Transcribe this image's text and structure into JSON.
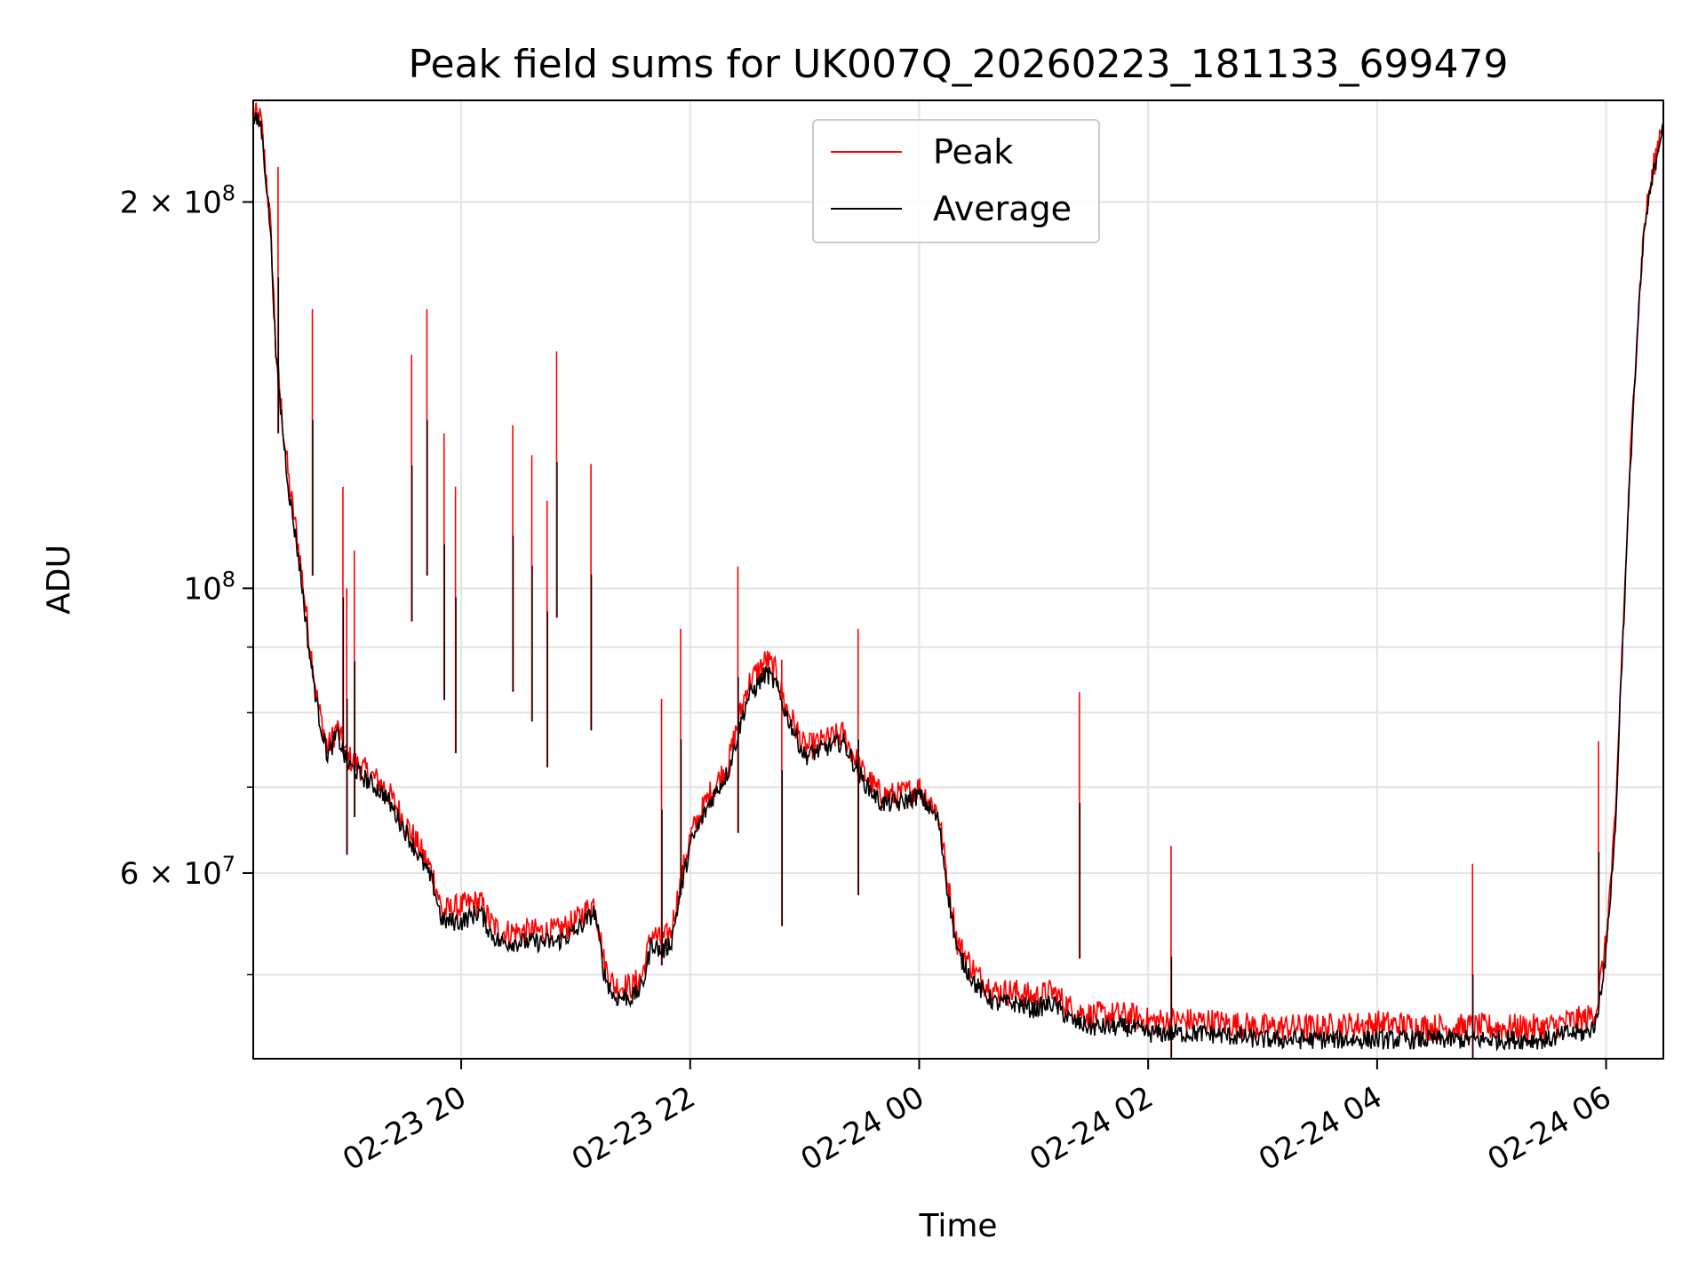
{
  "chart_data": {
    "type": "line",
    "title": "Peak field sums for UK007Q_20260223_181133_699479",
    "xlabel": "Time",
    "ylabel": "ADU",
    "yscale": "log",
    "ylim": [
      43000000,
      240000000
    ],
    "xlim": [
      "2026-02-23 18:11",
      "2026-02-24 06:30"
    ],
    "grid": true,
    "legend": {
      "placement": "top-center",
      "entries": [
        "Peak",
        "Average"
      ]
    },
    "x_ticks": [
      {
        "value": "2026-02-23 20:00",
        "label": "02-23 20"
      },
      {
        "value": "2026-02-23 22:00",
        "label": "02-23 22"
      },
      {
        "value": "2026-02-24 00:00",
        "label": "02-24 00"
      },
      {
        "value": "2026-02-24 02:00",
        "label": "02-24 02"
      },
      {
        "value": "2026-02-24 04:00",
        "label": "02-24 04"
      },
      {
        "value": "2026-02-24 06:00",
        "label": "02-24 06"
      }
    ],
    "y_ticks_major": [
      {
        "value": 100000000,
        "label_base": "10",
        "label_exp": "8",
        "label_coef": ""
      },
      {
        "value": 200000000,
        "label_base": "10",
        "label_exp": "8",
        "label_coef": "2 × "
      },
      {
        "value": 60000000,
        "label_base": "10",
        "label_exp": "7",
        "label_coef": "6 × "
      }
    ],
    "y_ticks_minor": [
      50000000,
      70000000,
      80000000,
      90000000
    ],
    "colors": {
      "Peak": "#ff0000",
      "Average": "#000000"
    },
    "series": [
      {
        "name": "Average",
        "x": [
          "2026-02-23 18:11",
          "2026-02-23 18:15",
          "2026-02-23 18:20",
          "2026-02-23 18:23",
          "2026-02-23 18:25",
          "2026-02-23 18:27",
          "2026-02-23 18:30",
          "2026-02-23 18:35",
          "2026-02-23 18:40",
          "2026-02-23 18:45",
          "2026-02-23 18:50",
          "2026-02-23 18:55",
          "2026-02-23 19:00",
          "2026-02-23 19:10",
          "2026-02-23 19:20",
          "2026-02-23 19:30",
          "2026-02-23 19:40",
          "2026-02-23 19:45",
          "2026-02-23 19:50",
          "2026-02-23 20:00",
          "2026-02-23 20:10",
          "2026-02-23 20:15",
          "2026-02-23 20:20",
          "2026-02-23 20:30",
          "2026-02-23 20:40",
          "2026-02-23 20:50",
          "2026-02-23 21:00",
          "2026-02-23 21:10",
          "2026-02-23 21:15",
          "2026-02-23 21:20",
          "2026-02-23 21:30",
          "2026-02-23 21:35",
          "2026-02-23 21:40",
          "2026-02-23 21:45",
          "2026-02-23 21:50",
          "2026-02-23 22:00",
          "2026-02-23 22:10",
          "2026-02-23 22:15",
          "2026-02-23 22:20",
          "2026-02-23 22:30",
          "2026-02-23 22:40",
          "2026-02-23 22:45",
          "2026-02-23 22:50",
          "2026-02-23 23:00",
          "2026-02-23 23:10",
          "2026-02-23 23:20",
          "2026-02-23 23:30",
          "2026-02-23 23:40",
          "2026-02-23 23:50",
          "2026-02-24 00:00",
          "2026-02-24 00:10",
          "2026-02-24 00:15",
          "2026-02-24 00:20",
          "2026-02-24 00:30",
          "2026-02-24 00:40",
          "2026-02-24 00:50",
          "2026-02-24 01:00",
          "2026-02-24 01:10",
          "2026-02-24 01:20",
          "2026-02-24 01:30",
          "2026-02-24 01:40",
          "2026-02-24 01:50",
          "2026-02-24 02:00",
          "2026-02-24 02:30",
          "2026-02-24 03:00",
          "2026-02-24 03:30",
          "2026-02-24 04:00",
          "2026-02-24 04:30",
          "2026-02-24 05:00",
          "2026-02-24 05:30",
          "2026-02-24 05:40",
          "2026-02-24 05:50",
          "2026-02-24 05:55",
          "2026-02-24 06:00",
          "2026-02-24 06:05",
          "2026-02-24 06:10",
          "2026-02-24 06:20",
          "2026-02-24 06:30"
        ],
        "values": [
          232000000,
          230000000,
          190000000,
          150000000,
          140000000,
          130000000,
          118000000,
          105000000,
          90000000,
          80000000,
          74000000,
          77000000,
          73000000,
          71000000,
          69000000,
          65000000,
          61000000,
          59000000,
          55000000,
          55000000,
          56000000,
          54000000,
          53000000,
          53000000,
          53000000,
          53000000,
          54000000,
          56000000,
          50000000,
          48000000,
          48000000,
          49000000,
          53000000,
          52000000,
          53000000,
          63000000,
          68000000,
          70000000,
          72000000,
          82000000,
          86000000,
          84000000,
          80000000,
          74000000,
          75000000,
          76000000,
          71000000,
          68000000,
          68000000,
          69000000,
          66000000,
          58000000,
          52000000,
          49000000,
          47500000,
          47500000,
          47000000,
          47500000,
          46000000,
          45500000,
          45500000,
          45500000,
          45000000,
          45000000,
          44500000,
          44500000,
          44500000,
          44500000,
          44500000,
          44500000,
          45000000,
          45000000,
          46000000,
          52000000,
          65000000,
          100000000,
          190000000,
          232000000
        ]
      },
      {
        "name": "Peak",
        "x": [
          "2026-02-23 18:11",
          "2026-02-23 18:15",
          "2026-02-23 18:20",
          "2026-02-23 18:23",
          "2026-02-23 18:25",
          "2026-02-23 18:27",
          "2026-02-23 18:30",
          "2026-02-23 18:35",
          "2026-02-23 18:40",
          "2026-02-23 18:45",
          "2026-02-23 18:50",
          "2026-02-23 18:55",
          "2026-02-23 19:00",
          "2026-02-23 19:10",
          "2026-02-23 19:20",
          "2026-02-23 19:30",
          "2026-02-23 19:40",
          "2026-02-23 19:45",
          "2026-02-23 19:50",
          "2026-02-23 20:00",
          "2026-02-23 20:10",
          "2026-02-23 20:15",
          "2026-02-23 20:20",
          "2026-02-23 20:30",
          "2026-02-23 20:40",
          "2026-02-23 20:50",
          "2026-02-23 21:00",
          "2026-02-23 21:10",
          "2026-02-23 21:15",
          "2026-02-23 21:20",
          "2026-02-23 21:30",
          "2026-02-23 21:35",
          "2026-02-23 21:40",
          "2026-02-23 21:45",
          "2026-02-23 21:50",
          "2026-02-23 22:00",
          "2026-02-23 22:10",
          "2026-02-23 22:15",
          "2026-02-23 22:20",
          "2026-02-23 22:30",
          "2026-02-23 22:40",
          "2026-02-23 22:45",
          "2026-02-23 22:50",
          "2026-02-23 23:00",
          "2026-02-23 23:10",
          "2026-02-23 23:20",
          "2026-02-23 23:30",
          "2026-02-23 23:40",
          "2026-02-23 23:50",
          "2026-02-24 00:00",
          "2026-02-24 00:10",
          "2026-02-24 00:15",
          "2026-02-24 00:20",
          "2026-02-24 00:30",
          "2026-02-24 00:40",
          "2026-02-24 00:50",
          "2026-02-24 01:00",
          "2026-02-24 01:10",
          "2026-02-24 01:20",
          "2026-02-24 01:30",
          "2026-02-24 01:40",
          "2026-02-24 01:50",
          "2026-02-24 02:00",
          "2026-02-24 02:30",
          "2026-02-24 03:00",
          "2026-02-24 03:30",
          "2026-02-24 04:00",
          "2026-02-24 04:30",
          "2026-02-24 05:00",
          "2026-02-24 05:30",
          "2026-02-24 05:40",
          "2026-02-24 05:50",
          "2026-02-24 05:55",
          "2026-02-24 06:00",
          "2026-02-24 06:05",
          "2026-02-24 06:10",
          "2026-02-24 06:20",
          "2026-02-24 06:30"
        ],
        "values": [
          234000000,
          232000000,
          192000000,
          152000000,
          142000000,
          132000000,
          120000000,
          107000000,
          92000000,
          81000000,
          75000000,
          78000000,
          74000000,
          72000000,
          70000000,
          66000000,
          62000000,
          60000000,
          56000000,
          56500000,
          57000000,
          55000000,
          54000000,
          54000000,
          54000000,
          54000000,
          55000000,
          57000000,
          51000000,
          49000000,
          49000000,
          50000000,
          54000000,
          53000000,
          54000000,
          64000000,
          69000000,
          71000000,
          73000000,
          84000000,
          88000000,
          86000000,
          81000000,
          75000000,
          76000000,
          77000000,
          72000000,
          69000000,
          69000000,
          70000000,
          67000000,
          59000000,
          53000000,
          50000000,
          48500000,
          48500000,
          48000000,
          48500000,
          47000000,
          46500000,
          46500000,
          46500000,
          46000000,
          46000000,
          45500000,
          45500000,
          45800000,
          45500000,
          45500000,
          45500000,
          46000000,
          46200000,
          47000000,
          53000000,
          66000000,
          101000000,
          192000000,
          234000000
        ],
        "spikes": [
          {
            "x": "2026-02-23 18:24",
            "value": 213000000
          },
          {
            "x": "2026-02-23 18:42",
            "value": 165000000
          },
          {
            "x": "2026-02-23 18:58",
            "value": 120000000
          },
          {
            "x": "2026-02-23 19:00",
            "value": 100000000
          },
          {
            "x": "2026-02-23 19:04",
            "value": 107000000
          },
          {
            "x": "2026-02-23 19:34",
            "value": 152000000
          },
          {
            "x": "2026-02-23 19:42",
            "value": 165000000
          },
          {
            "x": "2026-02-23 19:51",
            "value": 132000000
          },
          {
            "x": "2026-02-23 19:57",
            "value": 120000000
          },
          {
            "x": "2026-02-23 20:27",
            "value": 134000000
          },
          {
            "x": "2026-02-23 20:37",
            "value": 127000000
          },
          {
            "x": "2026-02-23 20:45",
            "value": 117000000
          },
          {
            "x": "2026-02-23 20:50",
            "value": 153000000
          },
          {
            "x": "2026-02-23 21:08",
            "value": 125000000
          },
          {
            "x": "2026-02-23 21:45",
            "value": 82000000
          },
          {
            "x": "2026-02-23 21:55",
            "value": 93000000
          },
          {
            "x": "2026-02-23 22:25",
            "value": 104000000
          },
          {
            "x": "2026-02-23 22:48",
            "value": 88000000
          },
          {
            "x": "2026-02-23 23:28",
            "value": 93000000
          },
          {
            "x": "2026-02-24 01:24",
            "value": 83000000
          },
          {
            "x": "2026-02-24 02:12",
            "value": 63000000
          },
          {
            "x": "2026-02-24 04:50",
            "value": 61000000
          },
          {
            "x": "2026-02-24 05:56",
            "value": 76000000
          }
        ]
      }
    ]
  }
}
